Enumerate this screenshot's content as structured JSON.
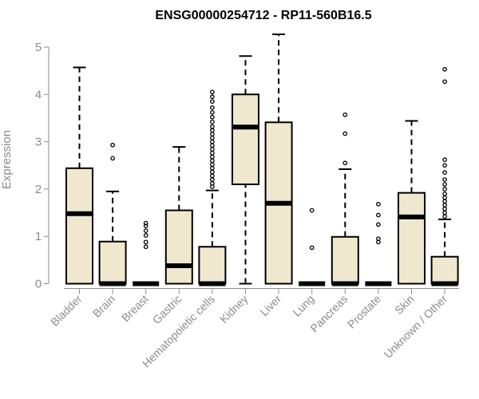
{
  "chart_data": {
    "type": "box",
    "title": "ENSG00000254712 - RP11-560B16.5",
    "xlabel": "",
    "ylabel": "Expression",
    "ylim": [
      0,
      5.3
    ],
    "yticks": [
      0,
      1,
      2,
      3,
      4,
      5
    ],
    "grid": false,
    "box_fill": "#efe8cf",
    "categories": [
      "Bladder",
      "Brain",
      "Breast",
      "Gastric",
      "Hematopoietic cells",
      "Kidney",
      "Liver",
      "Lung",
      "Pancreas",
      "Prostate",
      "Skin",
      "Unknown / Other"
    ],
    "boxes": [
      {
        "min": 0,
        "q1": 0,
        "median": 1.48,
        "q3": 2.44,
        "max": 4.57,
        "outliers": []
      },
      {
        "min": 0,
        "q1": 0,
        "median": 0,
        "q3": 0.89,
        "max": 1.95,
        "outliers": [
          2.65,
          2.93
        ]
      },
      {
        "min": 0,
        "q1": 0,
        "median": 0,
        "q3": 0,
        "max": 0,
        "outliers": [
          0.78,
          0.88,
          1.02,
          1.12,
          1.22,
          1.28
        ]
      },
      {
        "min": 0,
        "q1": 0,
        "median": 0.38,
        "q3": 1.55,
        "max": 2.89,
        "outliers": []
      },
      {
        "min": 0,
        "q1": 0,
        "median": 0,
        "q3": 0.78,
        "max": 1.97,
        "outliers": [
          2.05,
          2.12,
          2.2,
          2.28,
          2.36,
          2.44,
          2.52,
          2.6,
          2.68,
          2.76,
          2.84,
          2.92,
          3.0,
          3.08,
          3.16,
          3.24,
          3.32,
          3.42,
          3.52,
          3.62,
          3.72,
          3.85,
          3.95,
          4.05
        ]
      },
      {
        "min": 0,
        "q1": 2.1,
        "median": 3.31,
        "q3": 4.0,
        "max": 4.81,
        "outliers": []
      },
      {
        "min": 0,
        "q1": 0,
        "median": 1.7,
        "q3": 3.41,
        "max": 5.27,
        "outliers": []
      },
      {
        "min": 0,
        "q1": 0,
        "median": 0,
        "q3": 0,
        "max": 0,
        "outliers": [
          0.76,
          1.55
        ]
      },
      {
        "min": 0,
        "q1": 0,
        "median": 0,
        "q3": 0.99,
        "max": 2.42,
        "outliers": [
          2.55,
          3.17,
          3.57
        ]
      },
      {
        "min": 0,
        "q1": 0,
        "median": 0,
        "q3": 0,
        "max": 0,
        "outliers": [
          0.88,
          0.95,
          1.25,
          1.45,
          1.68
        ]
      },
      {
        "min": 0,
        "q1": 0,
        "median": 1.41,
        "q3": 1.92,
        "max": 3.44,
        "outliers": []
      },
      {
        "min": 0,
        "q1": 0,
        "median": 0,
        "q3": 0.57,
        "max": 1.36,
        "outliers": [
          1.42,
          1.5,
          1.58,
          1.66,
          1.74,
          1.82,
          1.9,
          2.0,
          2.1,
          2.2,
          2.35,
          2.5,
          2.62,
          4.27,
          4.53
        ]
      }
    ]
  }
}
